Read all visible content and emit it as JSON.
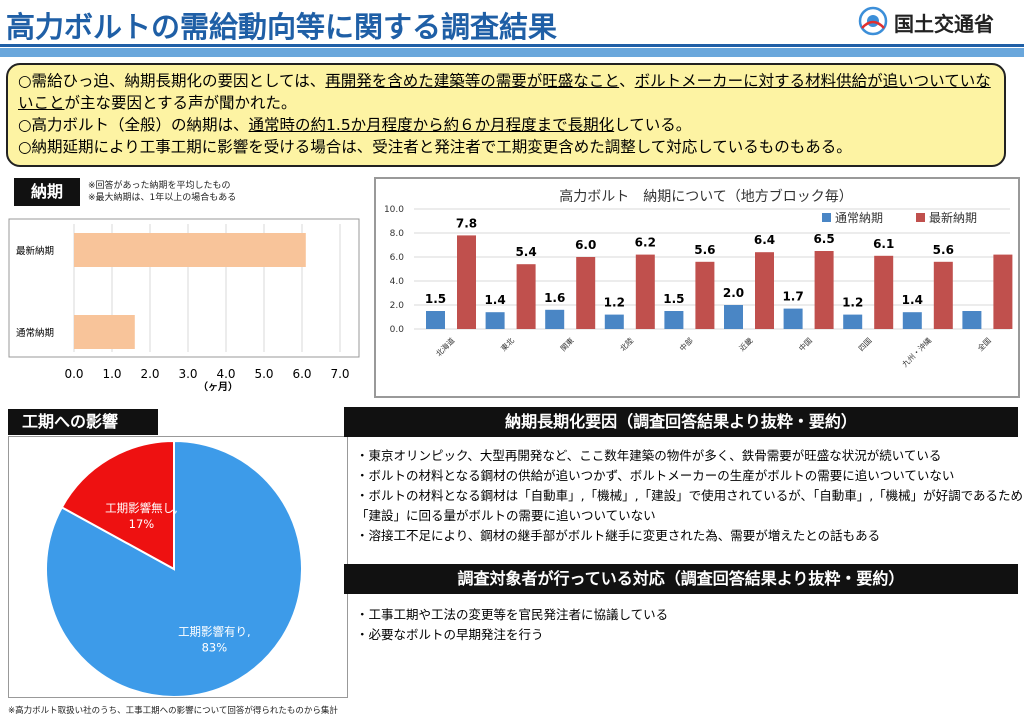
{
  "header": {
    "title": "高力ボルトの需給動向等に関する調査結果",
    "ministry": "国土交通省"
  },
  "summary": {
    "line1_pre": "○需給ひっ迫、納期長期化の要因としては、",
    "line1_u1": "再開発を含めた建築等の需要が旺盛なこと",
    "line1_mid": "、",
    "line1_u2": "ボルトメーカーに対する材料供給が追いついていないこと",
    "line1_post": "が主な要因とする声が聞かれた。",
    "line2_pre": "○高力ボルト（全般）の納期は、",
    "line2_u": "通常時の約1.5か月程度から約６か月程度まで長期化",
    "line2_post": "している。",
    "line3": "○納期延期により工事工期に影響を受ける場合は、受注者と発注者で工期変更含めた調整して対応しているものもある。"
  },
  "noki": {
    "label": "納期",
    "note1": "※回答があった納期を平均したもの",
    "note2": "※最大納期は、1年以上の場合もある"
  },
  "koki": {
    "label": "工期への影響",
    "note": "※高力ボルト取扱い社のうち、工事工期への影響について回答が得られたものから集計"
  },
  "causes": {
    "header": "納期長期化要因（調査回答結果より抜粋・要約）",
    "items": [
      "・東京オリンピック、大型再開発など、ここ数年建築の物件が多く、鉄骨需要が旺盛な状況が続いている",
      "・ボルトの材料となる鋼材の供給が追いつかず、ボルトメーカーの生産がボルトの需要に追いついていない",
      "・ボルトの材料となる鋼材は「自動車」,「機械」,「建設」で使用されているが、「自動車」,「機械」が好調であるため「建設」に回る量がボルトの需要に追いついていない",
      "・溶接工不足により、鋼材の継手部がボルト継手に変更された為、需要が増えたとの話もある"
    ]
  },
  "response": {
    "header": "調査対象者が行っている対応（調査回答結果より抜粋・要約）",
    "items": [
      "・工事工期や工法の変更等を官民発注者に協議している",
      "・必要なボルトの早期発注を行う"
    ]
  },
  "colors": {
    "brand_blue": "#1f5fa6",
    "summary_bg": "#fdf3a3",
    "bar_peach": "#f8c49a",
    "series_blue": "#4a86c5",
    "series_red": "#c0504d",
    "pie_blue": "#3d9be9",
    "pie_red": "#ee1111"
  },
  "chart_data": [
    {
      "type": "bar",
      "orientation": "horizontal",
      "categories": [
        "最新納期",
        "通常納期"
      ],
      "values": [
        6.1,
        1.6
      ],
      "xlim": [
        0,
        7
      ],
      "xticks": [
        "0.0",
        "1.0",
        "2.0",
        "3.0",
        "4.0",
        "5.0",
        "6.0",
        "7.0"
      ],
      "xlabel": "（ヶ月）",
      "grid": true
    },
    {
      "type": "bar",
      "title": "高力ボルト　納期について（地方ブロック毎）",
      "categories": [
        "北海道",
        "東北",
        "関東",
        "北陸",
        "中部",
        "近畿",
        "中国",
        "四国",
        "九州・沖縄",
        "全国"
      ],
      "series": [
        {
          "name": "通常納期",
          "values": [
            1.5,
            1.4,
            1.6,
            1.2,
            1.5,
            2.0,
            1.7,
            1.2,
            1.4,
            1.5
          ],
          "labels": [
            "1.5",
            "1.4",
            "1.6",
            "1.2",
            "1.5",
            "2.0",
            "1.7",
            "1.2",
            "1.4",
            ""
          ]
        },
        {
          "name": "最新納期",
          "values": [
            7.8,
            5.4,
            6.0,
            6.2,
            5.6,
            6.4,
            6.5,
            6.1,
            5.6,
            6.2
          ],
          "labels": [
            "7.8",
            "5.4",
            "6.0",
            "6.2",
            "5.6",
            "6.4",
            "6.5",
            "6.1",
            "5.6",
            ""
          ]
        }
      ],
      "ylim": [
        0,
        10
      ],
      "yticks": [
        "0.0",
        "2.0",
        "4.0",
        "6.0",
        "8.0",
        "10.0"
      ],
      "legend": "top-right",
      "grid": true
    },
    {
      "type": "pie",
      "slices": [
        {
          "label": "工期影響有り,",
          "pct": "83%",
          "value": 83
        },
        {
          "label": "工期影響無し,",
          "pct": "17%",
          "value": 17
        }
      ]
    }
  ]
}
